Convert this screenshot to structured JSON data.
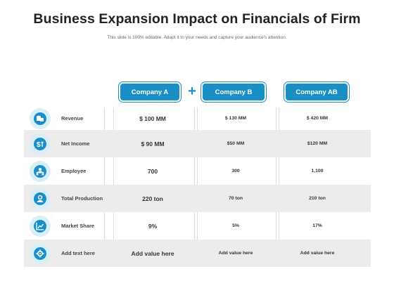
{
  "title": "Business Expansion Impact on Financials of Firm",
  "subtitle": "This slide is 100% editable. Adapt it to your needs and capture your audience's attention.",
  "companies": {
    "a": "Company A",
    "b": "Company B",
    "ab": "Company AB",
    "plus": "+"
  },
  "rows": [
    {
      "label": "Revenue",
      "a": "$ 100 MM",
      "b": "$ 130 MM",
      "ab": "$ 420 MM",
      "icon": "coins-icon"
    },
    {
      "label": "Net Income",
      "a": "$ 90 MM",
      "b": "$50 MM",
      "ab": "$120 MM",
      "icon": "dollar-growth-icon"
    },
    {
      "label": "Employee",
      "a": "700",
      "b": "300",
      "ab": "1,100",
      "icon": "team-icon"
    },
    {
      "label": "Total Production",
      "a": "220 ton",
      "b": "70 ton",
      "ab": "210 ton",
      "icon": "production-icon"
    },
    {
      "label": "Market Share",
      "a": "9%",
      "b": "5%",
      "ab": "17%",
      "icon": "market-chart-icon"
    },
    {
      "label": "Add text here",
      "a": "Add value here",
      "b": "Add value here",
      "ab": "Add value here",
      "icon": "gear-icon"
    }
  ],
  "colors": {
    "accent": "#1a8fc6",
    "icon_bg": "#d9eef9",
    "row_shade": "#ececec"
  }
}
